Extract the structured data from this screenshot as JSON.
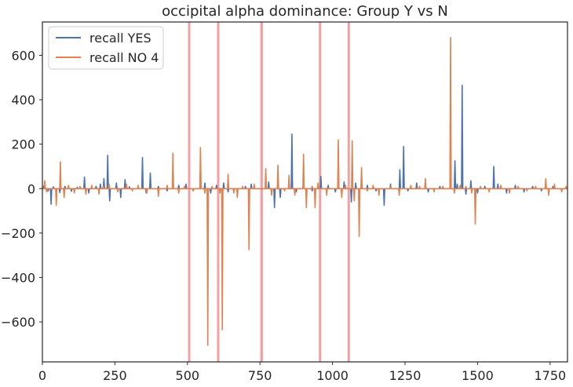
{
  "chart_data": {
    "type": "line",
    "title": "occipital alpha dominance: Group Y vs N",
    "xlabel": "",
    "ylabel": "",
    "xlim": [
      0,
      1810
    ],
    "ylim": [
      -780,
      750
    ],
    "xticks": [
      0,
      250,
      500,
      750,
      1000,
      1250,
      1500,
      1750
    ],
    "xtick_labels": [
      "0",
      "250",
      "500",
      "750",
      "1000",
      "1250",
      "1500",
      "1750"
    ],
    "yticks": [
      -600,
      -400,
      -200,
      0,
      200,
      400,
      600
    ],
    "ytick_labels": [
      "−600",
      "−400",
      "−200",
      "0",
      "200",
      "400",
      "600"
    ],
    "grid": false,
    "legend_position": "top-left",
    "highlight_bands": [
      {
        "from": 502,
        "to": 510
      },
      {
        "from": 602,
        "to": 610
      },
      {
        "from": 751,
        "to": 760
      },
      {
        "from": 953,
        "to": 961
      },
      {
        "from": 1052,
        "to": 1060
      }
    ],
    "highlight_color": "#f08080",
    "series": [
      {
        "name": "recall YES",
        "color": "#4c72b0",
        "baseline": 0,
        "spikes": [
          [
            5,
            12
          ],
          [
            20,
            -10
          ],
          [
            30,
            -70
          ],
          [
            38,
            8
          ],
          [
            60,
            -18
          ],
          [
            78,
            10
          ],
          [
            100,
            -12
          ],
          [
            120,
            6
          ],
          [
            145,
            52
          ],
          [
            160,
            -20
          ],
          [
            185,
            10
          ],
          [
            200,
            20
          ],
          [
            212,
            45
          ],
          [
            225,
            150
          ],
          [
            232,
            -55
          ],
          [
            255,
            25
          ],
          [
            270,
            -40
          ],
          [
            285,
            40
          ],
          [
            300,
            8
          ],
          [
            345,
            140
          ],
          [
            358,
            -20
          ],
          [
            372,
            70
          ],
          [
            400,
            10
          ],
          [
            430,
            -10
          ],
          [
            470,
            15
          ],
          [
            495,
            20
          ],
          [
            520,
            -10
          ],
          [
            560,
            25
          ],
          [
            580,
            -20
          ],
          [
            600,
            15
          ],
          [
            625,
            25
          ],
          [
            640,
            -15
          ],
          [
            700,
            10
          ],
          [
            720,
            20
          ],
          [
            780,
            30
          ],
          [
            800,
            -85
          ],
          [
            820,
            -40
          ],
          [
            860,
            245
          ],
          [
            875,
            -15
          ],
          [
            900,
            20
          ],
          [
            930,
            -10
          ],
          [
            960,
            55
          ],
          [
            985,
            15
          ],
          [
            1010,
            -15
          ],
          [
            1040,
            30
          ],
          [
            1065,
            -60
          ],
          [
            1080,
            25
          ],
          [
            1120,
            15
          ],
          [
            1150,
            -10
          ],
          [
            1178,
            -75
          ],
          [
            1200,
            20
          ],
          [
            1232,
            85
          ],
          [
            1245,
            190
          ],
          [
            1260,
            -10
          ],
          [
            1290,
            25
          ],
          [
            1330,
            -15
          ],
          [
            1370,
            10
          ],
          [
            1422,
            125
          ],
          [
            1430,
            20
          ],
          [
            1447,
            465
          ],
          [
            1460,
            -25
          ],
          [
            1477,
            35
          ],
          [
            1500,
            -20
          ],
          [
            1525,
            10
          ],
          [
            1556,
            100
          ],
          [
            1570,
            20
          ],
          [
            1600,
            -20
          ],
          [
            1630,
            15
          ],
          [
            1660,
            -15
          ],
          [
            1690,
            10
          ],
          [
            1720,
            -10
          ],
          [
            1760,
            10
          ],
          [
            1790,
            -8
          ]
        ]
      },
      {
        "name": "recall NO 4",
        "color": "#dd8452",
        "baseline": 0,
        "spikes": [
          [
            8,
            35
          ],
          [
            15,
            -15
          ],
          [
            48,
            -75
          ],
          [
            62,
            120
          ],
          [
            75,
            -40
          ],
          [
            90,
            15
          ],
          [
            110,
            -20
          ],
          [
            130,
            10
          ],
          [
            150,
            -25
          ],
          [
            170,
            15
          ],
          [
            195,
            -25
          ],
          [
            210,
            10
          ],
          [
            230,
            20
          ],
          [
            260,
            -15
          ],
          [
            290,
            20
          ],
          [
            310,
            -10
          ],
          [
            330,
            15
          ],
          [
            360,
            -20
          ],
          [
            400,
            -35
          ],
          [
            430,
            15
          ],
          [
            450,
            160
          ],
          [
            470,
            -20
          ],
          [
            490,
            10
          ],
          [
            520,
            -10
          ],
          [
            545,
            185
          ],
          [
            560,
            -20
          ],
          [
            570,
            -705
          ],
          [
            585,
            10
          ],
          [
            612,
            -20
          ],
          [
            620,
            -635
          ],
          [
            640,
            65
          ],
          [
            660,
            -20
          ],
          [
            672,
            -40
          ],
          [
            690,
            10
          ],
          [
            712,
            -275
          ],
          [
            730,
            20
          ],
          [
            770,
            90
          ],
          [
            790,
            -30
          ],
          [
            812,
            105
          ],
          [
            835,
            -10
          ],
          [
            850,
            60
          ],
          [
            870,
            -30
          ],
          [
            900,
            155
          ],
          [
            910,
            -85
          ],
          [
            930,
            10
          ],
          [
            940,
            -85
          ],
          [
            950,
            25
          ],
          [
            980,
            -30
          ],
          [
            1020,
            220
          ],
          [
            1032,
            -40
          ],
          [
            1045,
            15
          ],
          [
            1068,
            215
          ],
          [
            1075,
            -55
          ],
          [
            1092,
            -215
          ],
          [
            1100,
            95
          ],
          [
            1120,
            -10
          ],
          [
            1140,
            15
          ],
          [
            1160,
            -30
          ],
          [
            1200,
            10
          ],
          [
            1230,
            -30
          ],
          [
            1270,
            15
          ],
          [
            1300,
            10
          ],
          [
            1320,
            45
          ],
          [
            1350,
            -15
          ],
          [
            1380,
            10
          ],
          [
            1407,
            680
          ],
          [
            1420,
            -20
          ],
          [
            1440,
            15
          ],
          [
            1460,
            10
          ],
          [
            1480,
            -20
          ],
          [
            1492,
            -160
          ],
          [
            1510,
            10
          ],
          [
            1540,
            -15
          ],
          [
            1580,
            15
          ],
          [
            1610,
            -20
          ],
          [
            1640,
            10
          ],
          [
            1670,
            -10
          ],
          [
            1700,
            10
          ],
          [
            1735,
            45
          ],
          [
            1745,
            -30
          ],
          [
            1765,
            20
          ],
          [
            1790,
            -15
          ],
          [
            1805,
            10
          ]
        ]
      }
    ]
  }
}
